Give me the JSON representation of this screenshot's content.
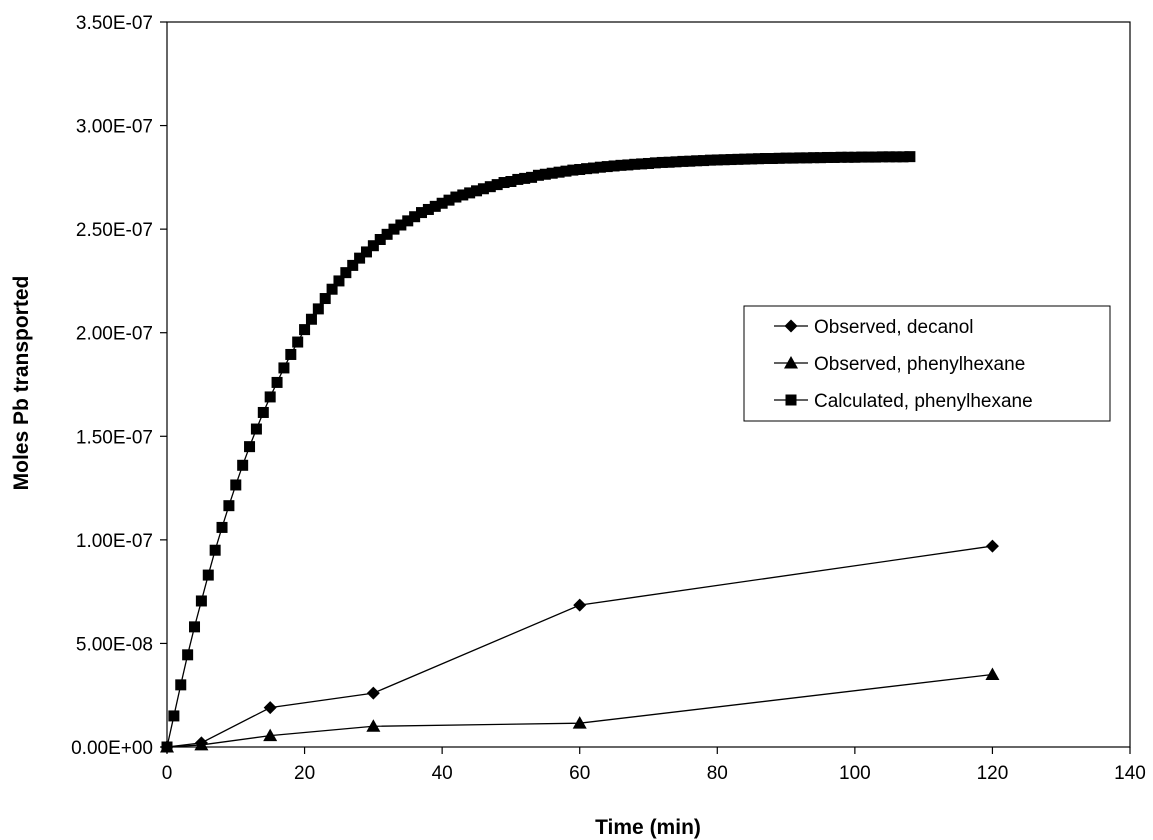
{
  "chart_data": {
    "type": "line",
    "title": "",
    "xlabel": "Time (min)",
    "ylabel": "Moles Pb transported",
    "xlim": [
      0,
      140
    ],
    "ylim": [
      0,
      3.5e-07
    ],
    "x_ticks": [
      0,
      20,
      40,
      60,
      80,
      100,
      120,
      140
    ],
    "x_tick_labels": [
      "0",
      "20",
      "40",
      "60",
      "80",
      "100",
      "120",
      "140"
    ],
    "y_ticks": [
      0,
      5e-08,
      1e-07,
      1.5e-07,
      2e-07,
      2.5e-07,
      3e-07,
      3.5e-07
    ],
    "y_tick_labels": [
      "0.00E+00",
      "5.00E-08",
      "1.00E-07",
      "1.50E-07",
      "2.00E-07",
      "2.50E-07",
      "3.00E-07",
      "3.50E-07"
    ],
    "grid": false,
    "legend_position": "right",
    "series": [
      {
        "name": "Observed, decanol",
        "marker": "diamond",
        "color": "#000000",
        "x": [
          0,
          5,
          15,
          30,
          60,
          120
        ],
        "y": [
          0,
          2e-09,
          1.9e-08,
          2.6e-08,
          6.85e-08,
          9.7e-08
        ]
      },
      {
        "name": "Observed, phenylhexane",
        "marker": "triangle",
        "color": "#000000",
        "x": [
          0,
          5,
          15,
          30,
          60,
          120
        ],
        "y": [
          0,
          1e-09,
          5.5e-09,
          1e-08,
          1.15e-08,
          3.5e-08
        ]
      },
      {
        "name": "Calculated, phenylhexane",
        "marker": "square",
        "color": "#000000",
        "x": [
          0,
          1,
          2,
          3,
          4,
          5,
          6,
          7,
          8,
          9,
          10,
          11,
          12,
          13,
          14,
          15,
          16,
          17,
          18,
          19,
          20,
          21,
          22,
          23,
          24,
          25,
          26,
          27,
          28,
          29,
          30,
          31,
          32,
          33,
          34,
          35,
          36,
          37,
          38,
          39,
          40,
          41,
          42,
          43,
          44,
          45,
          46,
          47,
          48,
          49,
          50,
          51,
          52,
          53,
          54,
          55,
          56,
          57,
          58,
          59,
          60,
          61,
          62,
          63,
          64,
          65,
          66,
          67,
          68,
          69,
          70,
          71,
          72,
          73,
          74,
          75,
          76,
          77,
          78,
          79,
          80,
          81,
          82,
          83,
          84,
          85,
          86,
          87,
          88,
          89,
          90,
          91,
          92,
          93,
          94,
          95,
          96,
          97,
          98,
          99,
          100,
          101,
          102,
          103,
          104,
          105,
          106,
          107,
          108
        ],
        "y": [
          0,
          1.5e-08,
          3e-08,
          4.45e-08,
          5.8e-08,
          7.05e-08,
          8.3e-08,
          9.5e-08,
          1.06e-07,
          1.165e-07,
          1.265e-07,
          1.36e-07,
          1.45e-07,
          1.535e-07,
          1.615e-07,
          1.69e-07,
          1.76e-07,
          1.83e-07,
          1.895e-07,
          1.955e-07,
          2.015e-07,
          2.065e-07,
          2.115e-07,
          2.165e-07,
          2.21e-07,
          2.25e-07,
          2.29e-07,
          2.325e-07,
          2.36e-07,
          2.39e-07,
          2.42e-07,
          2.45e-07,
          2.475e-07,
          2.5e-07,
          2.52e-07,
          2.54e-07,
          2.56e-07,
          2.58e-07,
          2.595e-07,
          2.61e-07,
          2.625e-07,
          2.64e-07,
          2.655e-07,
          2.665e-07,
          2.675e-07,
          2.685e-07,
          2.695e-07,
          2.705e-07,
          2.715e-07,
          2.725e-07,
          2.73e-07,
          2.74e-07,
          2.745e-07,
          2.75e-07,
          2.76e-07,
          2.765e-07,
          2.77e-07,
          2.775e-07,
          2.78e-07,
          2.785e-07,
          2.788e-07,
          2.792e-07,
          2.795e-07,
          2.799e-07,
          2.802e-07,
          2.805e-07,
          2.808e-07,
          2.81e-07,
          2.813e-07,
          2.815e-07,
          2.817e-07,
          2.82e-07,
          2.822e-07,
          2.823e-07,
          2.825e-07,
          2.827e-07,
          2.828e-07,
          2.83e-07,
          2.831e-07,
          2.833e-07,
          2.834e-07,
          2.835e-07,
          2.836e-07,
          2.837e-07,
          2.838e-07,
          2.839e-07,
          2.84e-07,
          2.841e-07,
          2.841e-07,
          2.842e-07,
          2.843e-07,
          2.843e-07,
          2.844e-07,
          2.844e-07,
          2.845e-07,
          2.845e-07,
          2.846e-07,
          2.846e-07,
          2.847e-07,
          2.847e-07,
          2.847e-07,
          2.848e-07,
          2.848e-07,
          2.848e-07,
          2.849e-07,
          2.849e-07,
          2.849e-07,
          2.849e-07,
          2.85e-07
        ]
      }
    ]
  }
}
